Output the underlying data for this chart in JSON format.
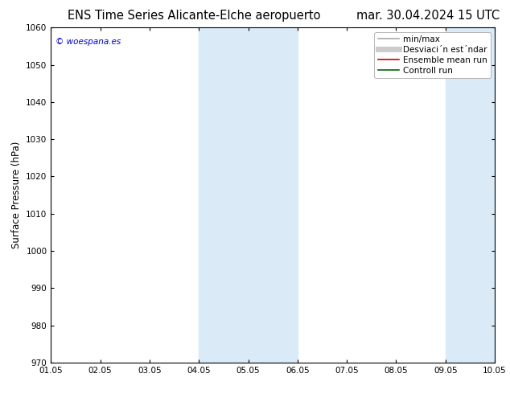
{
  "title_left": "ENS Time Series Alicante-Elche aeropuerto",
  "title_right": "mar. 30.04.2024 15 UTC",
  "ylabel": "Surface Pressure (hPa)",
  "ylim": [
    970,
    1060
  ],
  "yticks": [
    970,
    980,
    990,
    1000,
    1010,
    1020,
    1030,
    1040,
    1050,
    1060
  ],
  "xtick_labels": [
    "01.05",
    "02.05",
    "03.05",
    "04.05",
    "05.05",
    "06.05",
    "07.05",
    "08.05",
    "09.05",
    "10.05"
  ],
  "xlim": [
    0,
    9
  ],
  "shaded_bands": [
    {
      "xstart": 3.0,
      "xend": 4.0,
      "color": "#daeaf7"
    },
    {
      "xstart": 4.0,
      "xend": 5.0,
      "color": "#daeaf7"
    },
    {
      "xstart": 8.0,
      "xend": 8.5,
      "color": "#daeaf7"
    },
    {
      "xstart": 8.5,
      "xend": 9.0,
      "color": "#daeaf7"
    }
  ],
  "copyright_text": "© woespana.es",
  "copyright_color": "#0000cc",
  "background_color": "#ffffff",
  "legend_entries": [
    {
      "label": "min/max",
      "color": "#aaaaaa",
      "lw": 1.2
    },
    {
      "label": "Desviaci´n est´ndar",
      "color": "#cccccc",
      "lw": 5
    },
    {
      "label": "Ensemble mean run",
      "color": "#cc0000",
      "lw": 1.2
    },
    {
      "label": "Controll run",
      "color": "#006600",
      "lw": 1.2
    }
  ],
  "title_fontsize": 10.5,
  "tick_fontsize": 7.5,
  "ylabel_fontsize": 8.5,
  "legend_fontsize": 7.5
}
